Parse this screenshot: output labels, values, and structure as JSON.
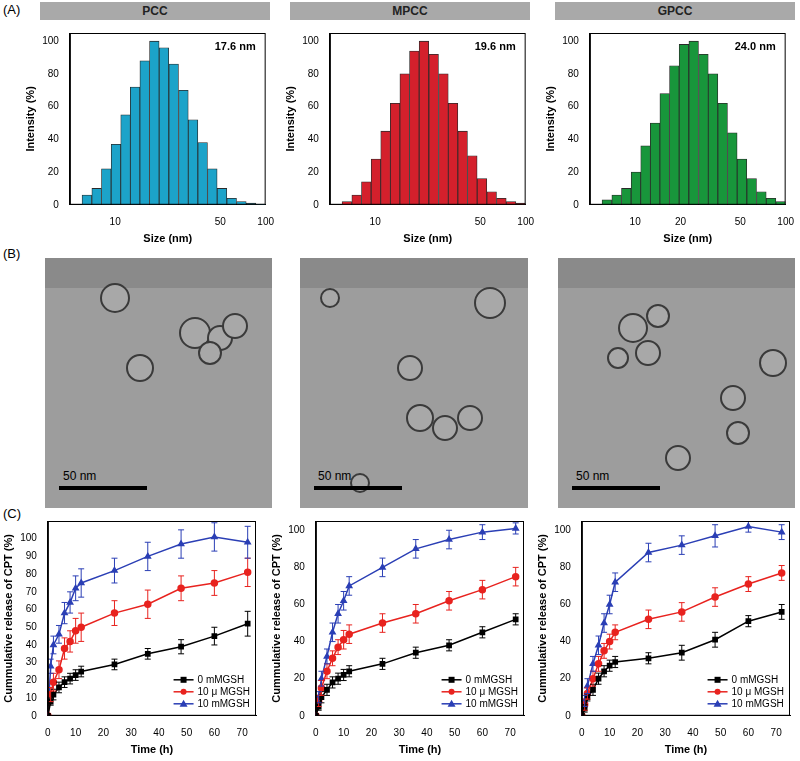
{
  "panel_labels": [
    "(A)",
    "(B)",
    "(C)"
  ],
  "images": [
    {
      "scale_bar": "50 nm"
    },
    {
      "scale_bar": "50 nm"
    },
    {
      "scale_bar": "50 nm"
    }
  ],
  "chart_data": [
    {
      "type": "histogram",
      "title": "PCC",
      "annotation": "17.6 nm",
      "x_label": "Size (nm)",
      "y_label": "Intensity (%)",
      "bins": [
        6.0,
        7.0,
        8.1,
        9.4,
        10.9,
        12.6,
        14.6,
        16.9,
        19.6,
        22.7,
        26.4,
        30.6,
        35.4,
        41.1,
        47.6,
        55.2,
        64.1,
        74.3,
        86.1,
        99.8
      ],
      "counts": [
        6,
        10,
        22,
        37,
        55,
        72,
        88,
        100,
        96,
        86,
        70,
        52,
        38,
        22,
        10,
        4,
        2,
        1,
        0.5
      ],
      "color": "#1ca3c9",
      "log": "x",
      "xlim": [
        5,
        100
      ],
      "xticks": [
        10,
        50,
        100
      ],
      "ylim": [
        0,
        105
      ],
      "yticks": [
        0,
        20,
        40,
        60,
        80,
        100
      ],
      "grid": false
    },
    {
      "type": "histogram",
      "title": "MPCC",
      "annotation": "19.6 nm",
      "x_label": "Size (nm)",
      "y_label": "Intensity (%)",
      "bins": [
        6.0,
        7.0,
        8.1,
        9.4,
        10.9,
        12.6,
        14.6,
        16.9,
        19.6,
        22.7,
        26.4,
        30.6,
        35.4,
        41.1,
        47.6,
        55.2,
        64.1,
        74.3,
        86.1,
        99.8
      ],
      "counts": [
        2,
        6,
        14,
        28,
        45,
        62,
        80,
        94,
        100,
        92,
        80,
        62,
        45,
        30,
        16,
        8,
        4,
        2,
        1
      ],
      "color": "#d4202c",
      "log": "x",
      "xlim": [
        5,
        100
      ],
      "xticks": [
        10,
        50,
        100
      ],
      "ylim": [
        0,
        105
      ],
      "yticks": [
        0,
        20,
        40,
        60,
        80,
        100
      ],
      "grid": false
    },
    {
      "type": "histogram",
      "title": "GPCC",
      "annotation": "24.0 nm",
      "x_label": "Size (nm)",
      "y_label": "Intensity (%)",
      "bins": [
        6.0,
        7.0,
        8.1,
        9.4,
        10.9,
        12.6,
        14.6,
        16.9,
        19.6,
        22.7,
        26.4,
        30.6,
        35.4,
        41.1,
        47.6,
        55.2,
        64.1,
        74.3,
        86.1,
        99.8
      ],
      "counts": [
        3,
        6,
        10,
        20,
        36,
        50,
        68,
        85,
        98,
        100,
        92,
        80,
        62,
        44,
        28,
        16,
        8,
        4,
        2
      ],
      "color": "#18963b",
      "log": "x",
      "xlim": [
        5,
        100
      ],
      "xticks": [
        10,
        20,
        50,
        100
      ],
      "ylim": [
        0,
        105
      ],
      "yticks": [
        0,
        20,
        40,
        60,
        80,
        100
      ],
      "grid": false
    },
    {
      "type": "line",
      "x_label": "Time (h)",
      "y_label": "Cummulative release of CPT (%)",
      "x": [
        0,
        1,
        2,
        4,
        6,
        8,
        10,
        12,
        24,
        36,
        48,
        60,
        72
      ],
      "series": [
        {
          "name": "0 mMGSH",
          "color": "#000000",
          "marker": "square",
          "values": [
            0,
            8,
            12,
            16,
            19,
            21,
            23,
            25,
            29,
            35,
            39,
            45,
            52
          ],
          "errors": [
            0,
            2,
            3,
            3,
            3,
            3,
            3,
            3,
            3,
            3,
            4,
            5,
            7
          ]
        },
        {
          "name": "10 μ MGSH",
          "color": "#e8231f",
          "marker": "circle",
          "values": [
            0,
            12,
            19,
            26,
            38,
            42,
            48,
            50,
            58,
            63,
            72,
            75,
            81
          ],
          "errors": [
            0,
            4,
            5,
            5,
            6,
            6,
            7,
            8,
            7,
            8,
            7,
            7,
            8
          ]
        },
        {
          "name": "10 mMGSH",
          "color": "#2b3fb5",
          "marker": "triangle",
          "values": [
            0,
            28,
            40,
            46,
            58,
            64,
            72,
            75,
            82,
            90,
            97,
            101,
            98
          ],
          "errors": [
            0,
            4,
            5,
            5,
            6,
            6,
            7,
            8,
            7,
            8,
            8,
            8,
            9
          ]
        }
      ],
      "xlim": [
        0,
        75
      ],
      "xticks": [
        0,
        10,
        20,
        30,
        40,
        50,
        60,
        70
      ],
      "ylim": [
        0,
        110
      ],
      "yticks": [
        0,
        10,
        20,
        30,
        40,
        50,
        60,
        70,
        80,
        90,
        100
      ],
      "legend": "lower right",
      "grid": false
    },
    {
      "type": "line",
      "x_label": "Time (h)",
      "y_label": "Cummulative release of CPT (%)",
      "x": [
        0,
        1,
        2,
        4,
        6,
        8,
        10,
        12,
        24,
        36,
        48,
        60,
        72
      ],
      "series": [
        {
          "name": "0 mMGSH",
          "color": "#000000",
          "marker": "square",
          "values": [
            0,
            5,
            10,
            14,
            18,
            20,
            22,
            24,
            28,
            34,
            38,
            45,
            52
          ],
          "errors": [
            0,
            2,
            3,
            3,
            3,
            3,
            3,
            3,
            3,
            3,
            3,
            3,
            3
          ]
        },
        {
          "name": "10 μ MGSH",
          "color": "#e8231f",
          "marker": "circle",
          "values": [
            0,
            8,
            15,
            24,
            31,
            37,
            41,
            44,
            50,
            55,
            62,
            68,
            75
          ],
          "errors": [
            0,
            3,
            4,
            4,
            4,
            4,
            5,
            5,
            5,
            5,
            5,
            5,
            5
          ]
        },
        {
          "name": "10 mMGSH",
          "color": "#2b3fb5",
          "marker": "triangle",
          "values": [
            0,
            10,
            20,
            32,
            45,
            55,
            62,
            70,
            80,
            90,
            95,
            99,
            101
          ],
          "errors": [
            0,
            3,
            4,
            4,
            5,
            5,
            5,
            5,
            5,
            5,
            5,
            4,
            3
          ]
        }
      ],
      "xlim": [
        0,
        75
      ],
      "xticks": [
        0,
        10,
        20,
        30,
        40,
        50,
        60,
        70
      ],
      "ylim": [
        0,
        105
      ],
      "yticks": [
        0,
        20,
        40,
        60,
        80,
        100
      ],
      "legend": "lower right",
      "grid": false
    },
    {
      "type": "line",
      "x_label": "Time (h)",
      "y_label": "Cummulative release of CPT (%)",
      "x": [
        0,
        1,
        2,
        4,
        6,
        8,
        10,
        12,
        24,
        36,
        48,
        60,
        72
      ],
      "series": [
        {
          "name": "0 mMGSH",
          "color": "#000000",
          "marker": "square",
          "values": [
            0,
            4,
            10,
            14,
            20,
            24,
            27,
            29,
            31,
            34,
            41,
            51,
            56
          ],
          "errors": [
            0,
            2,
            2,
            3,
            3,
            3,
            3,
            3,
            3,
            4,
            4,
            3,
            4
          ]
        },
        {
          "name": "10 μ MGSH",
          "color": "#e8231f",
          "marker": "circle",
          "values": [
            0,
            6,
            12,
            20,
            28,
            35,
            40,
            45,
            52,
            56,
            64,
            71,
            77
          ],
          "errors": [
            0,
            3,
            3,
            4,
            4,
            4,
            4,
            4,
            5,
            5,
            5,
            4,
            4
          ]
        },
        {
          "name": "10 mMGSH",
          "color": "#2b3fb5",
          "marker": "triangle",
          "values": [
            0,
            8,
            16,
            28,
            38,
            50,
            60,
            72,
            88,
            92,
            97,
            102,
            99
          ],
          "errors": [
            0,
            3,
            4,
            4,
            5,
            5,
            5,
            5,
            5,
            5,
            6,
            3,
            4
          ]
        }
      ],
      "xlim": [
        0,
        75
      ],
      "xticks": [
        0,
        10,
        20,
        30,
        40,
        50,
        60,
        70
      ],
      "ylim": [
        0,
        105
      ],
      "yticks": [
        0,
        20,
        40,
        60,
        80,
        100
      ],
      "legend": "lower right",
      "grid": false
    }
  ]
}
